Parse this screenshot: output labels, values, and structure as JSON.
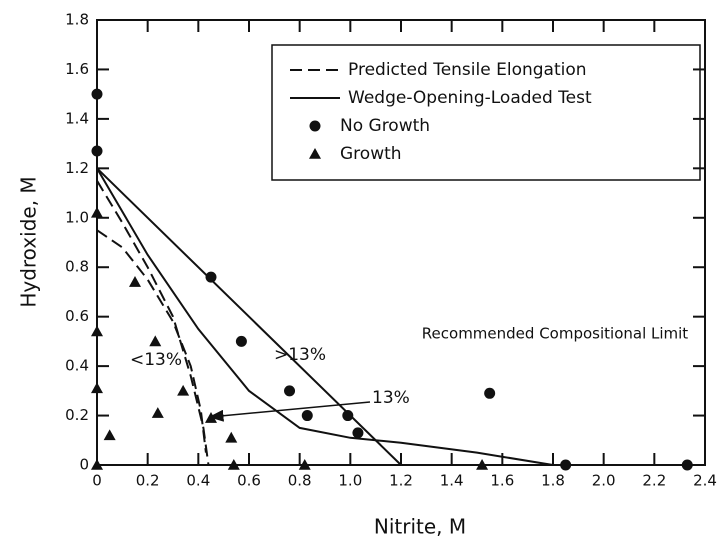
{
  "chart_data": {
    "type": "scatter",
    "x_label": "Nitrite, M",
    "y_label": "Hydroxide, M",
    "xlim": [
      0,
      2.4
    ],
    "ylim": [
      0,
      1.8
    ],
    "xticks": [
      0,
      0.2,
      0.4,
      0.6,
      0.8,
      {
        "value": 1,
        "label": "1.0"
      },
      1.2,
      1.4,
      1.6,
      1.8,
      {
        "value": 2,
        "label": "2.0"
      },
      2.2,
      2.4
    ],
    "yticks": [
      0,
      0.2,
      0.4,
      0.6,
      0.8,
      {
        "value": 1,
        "label": "1.0"
      },
      1.2,
      1.4,
      1.6,
      1.8
    ],
    "legend": "upper right",
    "annotations": [
      "Recommended Compositional Limit",
      "<13%",
      ">13%",
      "13%"
    ],
    "series": [
      {
        "name": "Predicted Tensile Elongation",
        "style": "dashed",
        "color": "#111111",
        "x": [
          0,
          0.1,
          0.2,
          0.3,
          0.37,
          0.41,
          0.43,
          null,
          0,
          0.1,
          0.2,
          0.3,
          0.37,
          0.42,
          0.44
        ],
        "y": [
          0.95,
          0.88,
          0.75,
          0.58,
          0.4,
          0.22,
          0.05,
          null,
          1.15,
          0.98,
          0.8,
          0.6,
          0.36,
          0.15,
          0
        ]
      },
      {
        "name": "Wedge-Opening-Loaded Test",
        "style": "solid",
        "color": "#111111",
        "x": [
          0,
          1.2,
          null,
          0,
          0.2,
          0.4,
          0.6,
          0.8,
          1.0,
          1.2,
          1.5,
          1.8
        ],
        "y": [
          1.2,
          0,
          null,
          1.2,
          0.85,
          0.55,
          0.3,
          0.15,
          0.11,
          0.09,
          0.05,
          0
        ]
      },
      {
        "name": "No Growth",
        "marker": "circle",
        "color": "#111111",
        "x": [
          0,
          0,
          0.45,
          0.57,
          0.76,
          0.83,
          0.99,
          1.03,
          1.55,
          1.85,
          2.33
        ],
        "y": [
          1.5,
          1.27,
          0.76,
          0.5,
          0.3,
          0.2,
          0.2,
          0.13,
          0.29,
          0,
          0
        ]
      },
      {
        "name": "Growth",
        "marker": "triangle",
        "color": "#111111",
        "x": [
          0,
          0,
          0,
          0,
          0.05,
          0.15,
          0.23,
          0.24,
          0.34,
          0.45,
          0.53,
          0.54,
          0.82,
          1.52
        ],
        "y": [
          1.02,
          0.54,
          0.31,
          0,
          0.12,
          0.74,
          0.5,
          0.21,
          0.3,
          0.19,
          0.11,
          0,
          0,
          0
        ]
      }
    ]
  }
}
